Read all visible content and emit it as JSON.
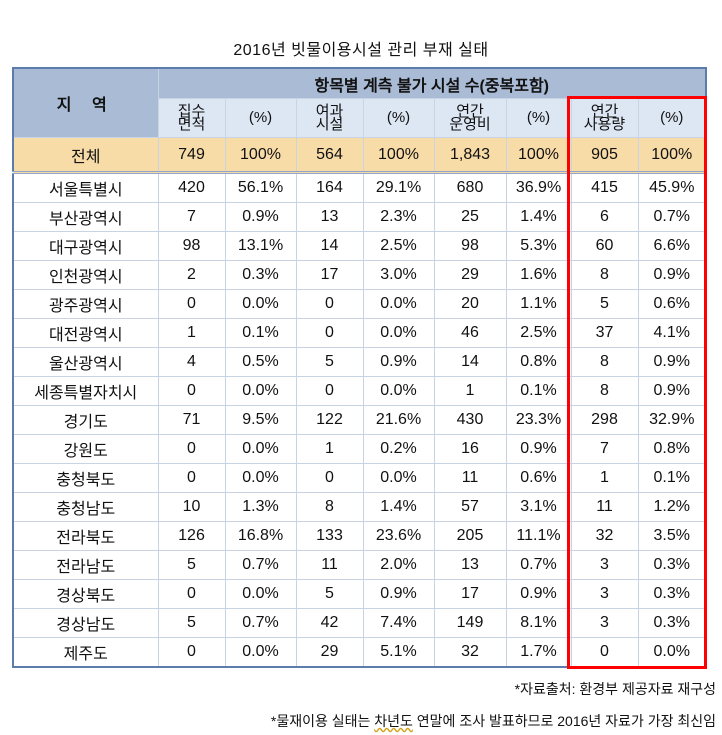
{
  "title": "2016년 빗물이용시설 관리 부재 실태",
  "header": {
    "region_label": "지 역",
    "group_label": "항목별 계측 불가 시설 수(중복포함)",
    "columns": [
      {
        "line1": "집수",
        "line2": "면적"
      },
      {
        "line1": "(%)",
        "line2": ""
      },
      {
        "line1": "여과",
        "line2": "시설"
      },
      {
        "line1": "(%)",
        "line2": ""
      },
      {
        "line1": "연간",
        "line2": "운영비"
      },
      {
        "line1": "(%)",
        "line2": ""
      },
      {
        "line1": "연간",
        "line2": "사용량"
      },
      {
        "line1": "(%)",
        "line2": ""
      }
    ]
  },
  "total": {
    "region": "전체",
    "values": [
      "749",
      "100%",
      "564",
      "100%",
      "1,843",
      "100%",
      "905",
      "100%"
    ]
  },
  "rows": [
    {
      "region": "서울특별시",
      "values": [
        "420",
        "56.1%",
        "164",
        "29.1%",
        "680",
        "36.9%",
        "415",
        "45.9%"
      ]
    },
    {
      "region": "부산광역시",
      "values": [
        "7",
        "0.9%",
        "13",
        "2.3%",
        "25",
        "1.4%",
        "6",
        "0.7%"
      ]
    },
    {
      "region": "대구광역시",
      "values": [
        "98",
        "13.1%",
        "14",
        "2.5%",
        "98",
        "5.3%",
        "60",
        "6.6%"
      ]
    },
    {
      "region": "인천광역시",
      "values": [
        "2",
        "0.3%",
        "17",
        "3.0%",
        "29",
        "1.6%",
        "8",
        "0.9%"
      ]
    },
    {
      "region": "광주광역시",
      "values": [
        "0",
        "0.0%",
        "0",
        "0.0%",
        "20",
        "1.1%",
        "5",
        "0.6%"
      ]
    },
    {
      "region": "대전광역시",
      "values": [
        "1",
        "0.1%",
        "0",
        "0.0%",
        "46",
        "2.5%",
        "37",
        "4.1%"
      ]
    },
    {
      "region": "울산광역시",
      "values": [
        "4",
        "0.5%",
        "5",
        "0.9%",
        "14",
        "0.8%",
        "8",
        "0.9%"
      ]
    },
    {
      "region": "세종특별자치시",
      "values": [
        "0",
        "0.0%",
        "0",
        "0.0%",
        "1",
        "0.1%",
        "8",
        "0.9%"
      ]
    },
    {
      "region": "경기도",
      "values": [
        "71",
        "9.5%",
        "122",
        "21.6%",
        "430",
        "23.3%",
        "298",
        "32.9%"
      ]
    },
    {
      "region": "강원도",
      "values": [
        "0",
        "0.0%",
        "1",
        "0.2%",
        "16",
        "0.9%",
        "7",
        "0.8%"
      ]
    },
    {
      "region": "충청북도",
      "values": [
        "0",
        "0.0%",
        "0",
        "0.0%",
        "11",
        "0.6%",
        "1",
        "0.1%"
      ]
    },
    {
      "region": "충청남도",
      "values": [
        "10",
        "1.3%",
        "8",
        "1.4%",
        "57",
        "3.1%",
        "11",
        "1.2%"
      ]
    },
    {
      "region": "전라북도",
      "values": [
        "126",
        "16.8%",
        "133",
        "23.6%",
        "205",
        "11.1%",
        "32",
        "3.5%"
      ]
    },
    {
      "region": "전라남도",
      "values": [
        "5",
        "0.7%",
        "11",
        "2.0%",
        "13",
        "0.7%",
        "3",
        "0.3%"
      ]
    },
    {
      "region": "경상북도",
      "values": [
        "0",
        "0.0%",
        "5",
        "0.9%",
        "17",
        "0.9%",
        "3",
        "0.3%"
      ]
    },
    {
      "region": "경상남도",
      "values": [
        "5",
        "0.7%",
        "42",
        "7.4%",
        "149",
        "8.1%",
        "3",
        "0.3%"
      ]
    },
    {
      "region": "제주도",
      "values": [
        "0",
        "0.0%",
        "29",
        "5.1%",
        "32",
        "1.7%",
        "0",
        "0.0%"
      ]
    }
  ],
  "notes": {
    "source": "*자료출처: 환경부 제공자료 재구성",
    "remark_before": "*물재이용 실태는 ",
    "remark_squiggle": "차년도",
    "remark_after": " 연말에 조사 발표하므로 2016년 자료가 가장 최신임"
  },
  "colors": {
    "header_bg": "#a9bbd5",
    "subheader_bg": "#dde6f3",
    "total_bg": "#f7dca8",
    "table_border": "#5c7cab",
    "highlight_box": "#ff0000"
  }
}
